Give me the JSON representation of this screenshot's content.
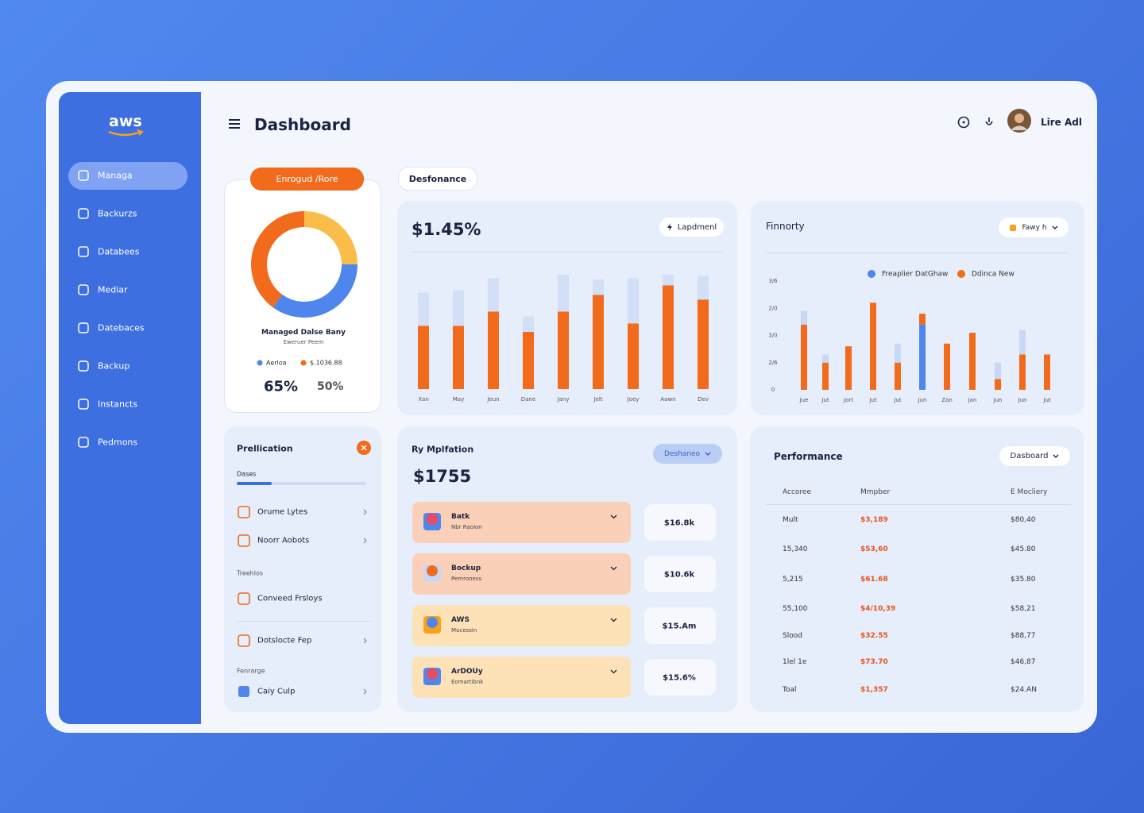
{
  "sidebar": {
    "logo": "aws",
    "items": [
      "Managa",
      "Backurzs",
      "Databees",
      "Mediar",
      "Datebaces",
      "Backup",
      "Instancts",
      "Pedmons"
    ]
  },
  "header": {
    "title": "Dashboard",
    "user": "Lire Adl"
  },
  "donut_card": {
    "button": "Enrogud /Rore",
    "caption": "Managed Dalse Bany",
    "subcaption": "Eweruer Peem",
    "stats": [
      "65%",
      "50%"
    ]
  },
  "performance_card": {
    "tab": "Desfonance",
    "amount": "$1.45%",
    "button": "Lapdmenl"
  },
  "priority_card": {
    "title": "Finnorty",
    "dropdown": "Fawy h"
  },
  "application_card": {
    "title": "Prellication",
    "tab": "Dases",
    "rows": [
      "Orume Lytes",
      "Noorr Aobots",
      "Treehlos",
      "Conveed Frsloys",
      "Dotslocte Fep",
      "Fenrarge",
      "Caiy Culp"
    ]
  },
  "migration_card": {
    "title": "Ry Mplfation",
    "dropdown": "Deshaneo",
    "amount": "$1755",
    "rows": [
      {
        "title": "Batk",
        "subtitle": "Nbr Raoion",
        "value": "$16.8k"
      },
      {
        "title": "Bockup",
        "subtitle": "Pemroness",
        "value": "$10.6k"
      },
      {
        "title": "AWS",
        "subtitle": "Mucessin",
        "value": "$15.Am"
      },
      {
        "title": "ArDOUy",
        "subtitle": "Eomartibnk",
        "value": "$15.6%"
      }
    ]
  },
  "table_card": {
    "title": "Performance",
    "dropdown": "Dasboard",
    "columns": [
      "Accoree",
      "Mmpber",
      "E Mocliery"
    ],
    "rows": [
      [
        "Mult",
        "$3,189",
        "$80,40"
      ],
      [
        "15,340",
        "$53,60",
        "$45.80"
      ],
      [
        "5,215",
        "$61.68",
        "$35.80"
      ],
      [
        "55,100",
        "$4/10,39",
        "$58,21"
      ],
      [
        "Slood",
        "$32.55",
        "$88,77"
      ],
      [
        "1lel 1e",
        "$73.70",
        "$46,87"
      ],
      [
        "Toal",
        "$1,357",
        "$24.AN"
      ]
    ]
  },
  "chart_data": [
    {
      "type": "pie",
      "donut": true,
      "categories": [
        null,
        "Aerloa",
        "$.1036.88"
      ],
      "values": [
        25,
        35,
        40
      ],
      "colors": [
        "#fbbd4a",
        "#4f86ee",
        "#f26a1b"
      ]
    },
    {
      "type": "bar",
      "stacked": true,
      "categories": [
        "Xan",
        "May",
        "Jeun",
        "Dane",
        "Jany",
        "Jelt",
        "Joey",
        "Aawn",
        "Dev"
      ],
      "ylim": [
        0,
        100
      ],
      "series": [
        {
          "color": "#f26a1b",
          "values": [
            53,
            53,
            65,
            48,
            65,
            79,
            55,
            87,
            75
          ]
        },
        {
          "color": "#d3def7",
          "values": [
            28,
            30,
            28,
            13,
            31,
            13,
            38,
            9,
            20
          ]
        }
      ]
    },
    {
      "type": "bar",
      "stacked": true,
      "categories": [
        "Jue",
        "Jut",
        "Jort",
        "Jut",
        "Jut",
        "Jun",
        "Zan",
        "Jan",
        "Jun",
        "Jun",
        "Jut"
      ],
      "ylim": [
        0,
        4
      ],
      "yticks": [
        0,
        {
          "value": 1,
          "label": "2/6"
        },
        {
          "value": 2,
          "label": "3/0"
        },
        {
          "value": 3,
          "label": "2/0"
        },
        {
          "value": 4,
          "label": "3/6"
        }
      ],
      "series": [
        {
          "name": "Freaplier DatGhaw",
          "color": "#4f86ee",
          "values": [
            0,
            0,
            0,
            0,
            0,
            2.4,
            0,
            0,
            0,
            0,
            0
          ]
        },
        {
          "name": "Ddinca New",
          "color": "#f26a1b",
          "values": [
            2.4,
            1.0,
            1.6,
            3.2,
            1.0,
            0.4,
            1.7,
            2.1,
            0.4,
            1.3,
            1.3
          ]
        },
        {
          "color": "#c9d7f6",
          "values": [
            0.5,
            0.3,
            0,
            0,
            0.7,
            0,
            0,
            0,
            0.6,
            0.9,
            0
          ]
        }
      ]
    }
  ]
}
